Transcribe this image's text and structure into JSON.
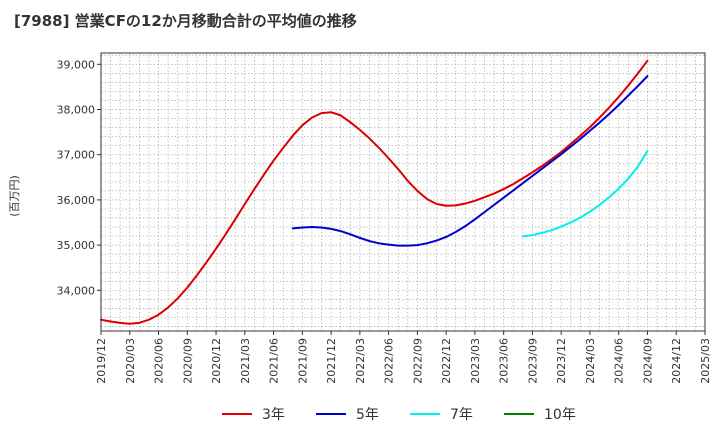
{
  "title": "[7988]  営業CFの12か月移動合計の平均値の推移",
  "chart_data": {
    "type": "line",
    "title": "[7988]  営業CFの12か月移動合計の平均値の推移",
    "xlabel": "",
    "ylabel": "(百万円)",
    "x_range": [
      "2019/12",
      "2025/03"
    ],
    "ylim": [
      33100,
      39250
    ],
    "y_ticks": [
      34000,
      35000,
      36000,
      37000,
      38000,
      39000
    ],
    "y_tick_labels": [
      "34,000",
      "35,000",
      "36,000",
      "37,000",
      "38,000",
      "39,000"
    ],
    "x_tick_labels": [
      "2019/12",
      "2020/03",
      "2020/06",
      "2020/09",
      "2020/12",
      "2021/03",
      "2021/06",
      "2021/09",
      "2021/12",
      "2022/03",
      "2022/06",
      "2022/09",
      "2022/12",
      "2023/03",
      "2023/06",
      "2023/09",
      "2023/12",
      "2024/03",
      "2024/06",
      "2024/09",
      "2024/12",
      "2025/03"
    ],
    "grid": true,
    "legend_position": "bottom",
    "series": [
      {
        "name": "3年",
        "color": "#dd0000",
        "x": [
          "2019/12",
          "2020/01",
          "2020/02",
          "2020/03",
          "2020/04",
          "2020/05",
          "2020/06",
          "2020/07",
          "2020/08",
          "2020/09",
          "2020/10",
          "2020/11",
          "2020/12",
          "2021/01",
          "2021/02",
          "2021/03",
          "2021/04",
          "2021/05",
          "2021/06",
          "2021/07",
          "2021/08",
          "2021/09",
          "2021/10",
          "2021/11",
          "2021/12",
          "2022/01",
          "2022/02",
          "2022/03",
          "2022/04",
          "2022/05",
          "2022/06",
          "2022/07",
          "2022/08",
          "2022/09",
          "2022/10",
          "2022/11",
          "2022/12",
          "2023/01",
          "2023/02",
          "2023/03",
          "2023/04",
          "2023/05",
          "2023/06",
          "2023/07",
          "2023/08",
          "2023/09",
          "2023/10",
          "2023/11",
          "2023/12",
          "2024/01",
          "2024/02",
          "2024/03",
          "2024/04",
          "2024/05",
          "2024/06",
          "2024/07",
          "2024/08",
          "2024/09"
        ],
        "values": [
          33350,
          33310,
          33280,
          33260,
          33280,
          33350,
          33460,
          33620,
          33820,
          34060,
          34330,
          34620,
          34920,
          35240,
          35570,
          35910,
          36240,
          36560,
          36870,
          37150,
          37420,
          37650,
          37820,
          37920,
          37940,
          37870,
          37720,
          37550,
          37360,
          37150,
          36920,
          36680,
          36420,
          36200,
          36020,
          35910,
          35870,
          35880,
          35920,
          35980,
          36060,
          36140,
          36240,
          36350,
          36480,
          36610,
          36750,
          36900,
          37060,
          37240,
          37420,
          37610,
          37820,
          38040,
          38280,
          38530,
          38800,
          39080
        ]
      },
      {
        "name": "5年",
        "color": "#0000cc",
        "x": [
          "2021/08",
          "2021/09",
          "2021/10",
          "2021/11",
          "2021/12",
          "2022/01",
          "2022/02",
          "2022/03",
          "2022/04",
          "2022/05",
          "2022/06",
          "2022/07",
          "2022/08",
          "2022/09",
          "2022/10",
          "2022/11",
          "2022/12",
          "2023/01",
          "2023/02",
          "2023/03",
          "2023/04",
          "2023/05",
          "2023/06",
          "2023/07",
          "2023/08",
          "2023/09",
          "2023/10",
          "2023/11",
          "2023/12",
          "2024/01",
          "2024/02",
          "2024/03",
          "2024/04",
          "2024/05",
          "2024/06",
          "2024/07",
          "2024/08",
          "2024/09"
        ],
        "values": [
          35370,
          35390,
          35400,
          35390,
          35360,
          35310,
          35240,
          35160,
          35090,
          35040,
          35010,
          34990,
          34990,
          35000,
          35040,
          35100,
          35180,
          35290,
          35420,
          35570,
          35730,
          35890,
          36050,
          36210,
          36370,
          36530,
          36690,
          36850,
          37010,
          37180,
          37350,
          37530,
          37710,
          37900,
          38100,
          38310,
          38520,
          38740
        ]
      },
      {
        "name": "7年",
        "color": "#00eeee",
        "x": [
          "2023/08",
          "2023/09",
          "2023/10",
          "2023/11",
          "2023/12",
          "2024/01",
          "2024/02",
          "2024/03",
          "2024/04",
          "2024/05",
          "2024/06",
          "2024/07",
          "2024/08",
          "2024/09"
        ],
        "values": [
          35190,
          35220,
          35270,
          35330,
          35410,
          35500,
          35610,
          35740,
          35890,
          36060,
          36250,
          36470,
          36740,
          37080
        ]
      },
      {
        "name": "10年",
        "color": "#008000",
        "x": [],
        "values": []
      }
    ]
  }
}
